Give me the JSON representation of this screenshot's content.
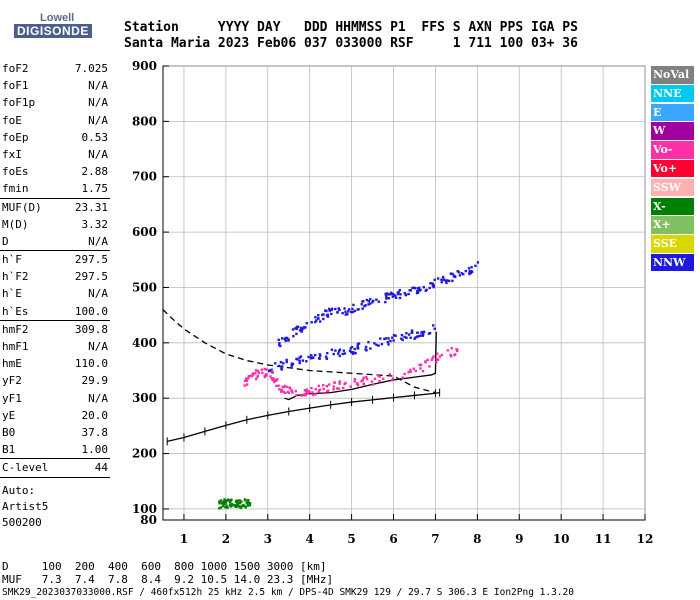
{
  "logo": {
    "line1": "Lowell",
    "line2": "DIGISONDE"
  },
  "header": {
    "row1": "Station     YYYY DAY   DDD HHMMSS P1  FFS S AXN PPS IGA PS",
    "row2": "Santa Maria 2023 Feb06 037 033000 RSF     1 711 100 03+ 36"
  },
  "params": {
    "group1": [
      {
        "label": "foF2",
        "value": "7.025"
      },
      {
        "label": "foF1",
        "value": "N/A"
      },
      {
        "label": "foF1p",
        "value": "N/A"
      },
      {
        "label": "foE",
        "value": "N/A"
      },
      {
        "label": "foEp",
        "value": "0.53"
      },
      {
        "label": "fxI",
        "value": "N/A"
      },
      {
        "label": "foEs",
        "value": "2.88"
      },
      {
        "label": "fmin",
        "value": "1.75"
      }
    ],
    "group2": [
      {
        "label": "MUF(D)",
        "value": "23.31"
      },
      {
        "label": "M(D)",
        "value": "3.32"
      },
      {
        "label": "D",
        "value": "N/A"
      }
    ],
    "group3": [
      {
        "label": "h`F",
        "value": "297.5"
      },
      {
        "label": "h`F2",
        "value": "297.5"
      },
      {
        "label": "h`E",
        "value": "N/A"
      },
      {
        "label": "h`Es",
        "value": "100.0"
      }
    ],
    "group4": [
      {
        "label": "hmF2",
        "value": "309.8"
      },
      {
        "label": "hmF1",
        "value": "N/A"
      },
      {
        "label": "hmE",
        "value": "110.0"
      },
      {
        "label": "yF2",
        "value": "29.9"
      },
      {
        "label": "yF1",
        "value": "N/A"
      },
      {
        "label": "yE",
        "value": "20.0"
      },
      {
        "label": "B0",
        "value": "37.8"
      },
      {
        "label": "B1",
        "value": "1.00"
      }
    ],
    "group5": [
      {
        "label": "C-level",
        "value": "44"
      }
    ]
  },
  "auto": {
    "line1": "Auto:",
    "line2": "Artist5",
    "line3": "500200"
  },
  "legend": [
    {
      "label": "NoVal",
      "color": "#808080"
    },
    {
      "label": "NNE",
      "color": "#00c8f0"
    },
    {
      "label": "E",
      "color": "#3aa6ff"
    },
    {
      "label": "W",
      "color": "#a000a0"
    },
    {
      "label": "Vo-",
      "color": "#ff2fa8"
    },
    {
      "label": "Vo+",
      "color": "#ff0030"
    },
    {
      "label": "SSW",
      "color": "#ffb0b0"
    },
    {
      "label": "X-",
      "color": "#008000"
    },
    {
      "label": "X+",
      "color": "#80c060"
    },
    {
      "label": "SSE",
      "color": "#d8d800"
    },
    {
      "label": "NNW",
      "color": "#1e18e0"
    }
  ],
  "footer": {
    "d_row": "D     100  200  400  600  800 1000 1500 3000 [km]",
    "muf_row": "MUF   7.3  7.4  7.8  8.4  9.2 10.5 14.0 23.3 [MHz]",
    "file_row": "SMK29_2023037033000.RSF / 460fx512h 25 kHz 2.5 km / DPS-4D SMK29 129 / 29.7 S 306.3 E Ion2Png 1.3.20"
  },
  "chart_data": {
    "type": "scatter",
    "xlim": [
      0.5,
      12
    ],
    "ylim": [
      80,
      900
    ],
    "x_ticks": [
      "1",
      "2",
      "3",
      "4",
      "5",
      "6",
      "7",
      "8",
      "9",
      "10",
      "11",
      "12"
    ],
    "y_ticks": [
      "100",
      "200",
      "300",
      "400",
      "500",
      "600",
      "700",
      "800",
      "900"
    ],
    "grid": "on",
    "series": [
      {
        "name": "",
        "kind": "trace",
        "x": [
          3.4,
          3.5,
          3.7,
          4.0,
          4.5,
          5.0,
          5.5,
          6.0,
          6.5,
          6.9,
          7.0,
          7.02
        ],
        "y": [
          300,
          297.5,
          305,
          308,
          310,
          316,
          325,
          333,
          338,
          342,
          345,
          420
        ]
      },
      {
        "name": "",
        "kind": "profile",
        "x": [
          0.6,
          1.0,
          1.5,
          2.0,
          2.5,
          3.0,
          3.5,
          4.0,
          4.5,
          5.0,
          5.5,
          6.0,
          6.5,
          7.0,
          7.1
        ],
        "y": [
          222,
          229,
          240,
          251,
          261,
          269,
          276,
          282,
          288,
          293,
          297,
          301,
          305,
          309,
          310
        ]
      },
      {
        "name": "",
        "kind": "dashed",
        "x": [
          0.5,
          0.7,
          1.0,
          1.5,
          2.0,
          2.5,
          3.0,
          3.5,
          4.0,
          5.0,
          6.0,
          6.5,
          7.0
        ],
        "y": [
          460,
          445,
          425,
          400,
          380,
          368,
          360,
          355,
          350,
          345,
          340,
          320,
          310
        ]
      },
      {
        "name": "NNW",
        "kind": "echo",
        "x": [
          3.2,
          3.6,
          4.0,
          4.4,
          4.8,
          5.2,
          5.6,
          6.0,
          6.4,
          6.8,
          7.2,
          7.6,
          8.0
        ],
        "y": [
          400,
          420,
          440,
          455,
          460,
          470,
          478,
          488,
          497,
          505,
          515,
          528,
          542
        ]
      },
      {
        "name": "NNW",
        "kind": "echo",
        "x": [
          3.0,
          3.5,
          4.0,
          4.5,
          5.0,
          5.5,
          6.0,
          6.5,
          7.0
        ],
        "y": [
          355,
          365,
          375,
          382,
          390,
          400,
          410,
          418,
          428
        ]
      },
      {
        "name": "Vo-",
        "kind": "echo",
        "x": [
          2.4,
          2.7,
          3.0,
          3.3,
          3.6,
          4.0,
          4.4,
          5.0,
          5.5,
          6.5,
          7.0,
          7.5
        ],
        "y": [
          330,
          345,
          350,
          320,
          310,
          315,
          320,
          330,
          335,
          350,
          375,
          390
        ]
      },
      {
        "name": "X-",
        "kind": "echo",
        "x": [
          1.8,
          1.95,
          2.1,
          2.25,
          2.4,
          2.55
        ],
        "y": [
          111,
          112,
          113,
          112,
          112,
          113
        ]
      }
    ]
  }
}
